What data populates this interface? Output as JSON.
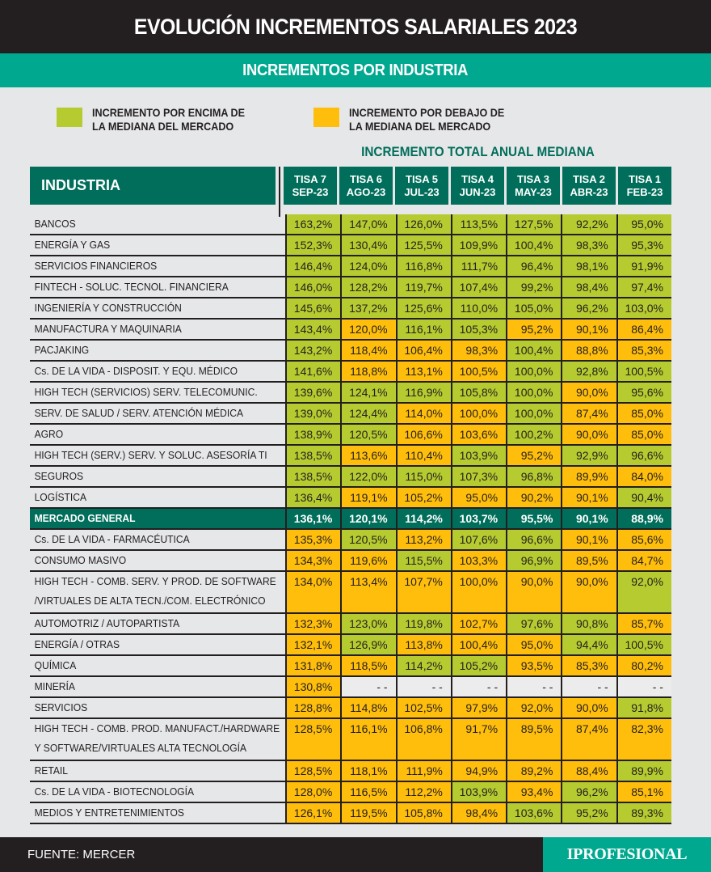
{
  "header": {
    "title": "EVOLUCIÓN INCREMENTOS SALARIALES 2023",
    "subtitle": "INCREMENTOS POR INDUSTRIA"
  },
  "legend": {
    "above": {
      "label_line1": "INCREMENTO POR ENCIMA DE",
      "label_line2": "LA MEDIANA DEL MERCADO",
      "color": "#b5cb30"
    },
    "below": {
      "label_line1": "INCREMENTO POR DEBAJO DE",
      "label_line2": "LA MEDIANA DEL MERCADO",
      "color": "#ffbe0c"
    }
  },
  "section_title": "INCREMENTO TOTAL ANUAL MEDIANA",
  "colors": {
    "header_dark": "#231f20",
    "teal": "#00a88f",
    "dark_green": "#006e5a",
    "above": "#b5cb30",
    "below": "#ffbe0c",
    "background": "#e6e7e9"
  },
  "table": {
    "industry_header": "INDUSTRIA",
    "columns": [
      {
        "line1": "TISA 7",
        "line2": "SEP-23"
      },
      {
        "line1": "TISA 6",
        "line2": "AGO-23"
      },
      {
        "line1": "TISA 5",
        "line2": "JUL-23"
      },
      {
        "line1": "TISA 4",
        "line2": "JUN-23"
      },
      {
        "line1": "TISA 3",
        "line2": "MAY-23"
      },
      {
        "line1": "TISA 2",
        "line2": "ABR-23"
      },
      {
        "line1": "TISA 1",
        "line2": "FEB-23"
      }
    ],
    "rows": [
      {
        "label": [
          "BANCOS"
        ],
        "values": [
          "163,2%",
          "147,0%",
          "126,0%",
          "113,5%",
          "127,5%",
          "92,2%",
          "95,0%"
        ],
        "status": [
          "a",
          "a",
          "a",
          "a",
          "a",
          "a",
          "a"
        ]
      },
      {
        "label": [
          "ENERGÍA Y GAS"
        ],
        "values": [
          "152,3%",
          "130,4%",
          "125,5%",
          "109,9%",
          "100,4%",
          "98,3%",
          "95,3%"
        ],
        "status": [
          "a",
          "a",
          "a",
          "a",
          "a",
          "a",
          "a"
        ]
      },
      {
        "label": [
          "SERVICIOS FINANCIEROS"
        ],
        "values": [
          "146,4%",
          "124,0%",
          "116,8%",
          "111,7%",
          "96,4%",
          "98,1%",
          "91,9%"
        ],
        "status": [
          "a",
          "a",
          "a",
          "a",
          "a",
          "a",
          "a"
        ]
      },
      {
        "label": [
          "FINTECH - SOLUC. TECNOL. FINANCIERA"
        ],
        "values": [
          "146,0%",
          "128,2%",
          "119,7%",
          "107,4%",
          "99,2%",
          "98,4%",
          "97,4%"
        ],
        "status": [
          "a",
          "a",
          "a",
          "a",
          "a",
          "a",
          "a"
        ]
      },
      {
        "label": [
          "INGENIERÍA Y CONSTRUCCIÓN"
        ],
        "values": [
          "145,6%",
          "137,2%",
          "125,6%",
          "110,0%",
          "105,0%",
          "96,2%",
          "103,0%"
        ],
        "status": [
          "a",
          "a",
          "a",
          "a",
          "a",
          "a",
          "a"
        ]
      },
      {
        "label": [
          "MANUFACTURA Y MAQUINARIA"
        ],
        "values": [
          "143,4%",
          "120,0%",
          "116,1%",
          "105,3%",
          "95,2%",
          "90,1%",
          "86,4%"
        ],
        "status": [
          "a",
          "b",
          "a",
          "a",
          "b",
          "b",
          "b"
        ]
      },
      {
        "label": [
          "PACJAKING"
        ],
        "values": [
          "143,2%",
          "118,4%",
          "106,4%",
          "98,3%",
          "100,4%",
          "88,8%",
          "85,3%"
        ],
        "status": [
          "a",
          "b",
          "b",
          "b",
          "a",
          "b",
          "b"
        ]
      },
      {
        "label": [
          "Cs. DE LA VIDA - DISPOSIT. Y EQU. MÉDICO"
        ],
        "values": [
          "141,6%",
          "118,8%",
          "113,1%",
          "100,5%",
          "100,0%",
          "92,8%",
          "100,5%"
        ],
        "status": [
          "a",
          "b",
          "b",
          "b",
          "a",
          "a",
          "a"
        ]
      },
      {
        "label": [
          "HIGH TECH (SERVICIOS) SERV. TELECOMUNIC."
        ],
        "values": [
          "139,6%",
          "124,1%",
          "116,9%",
          "105,8%",
          "100,0%",
          "90,0%",
          "95,6%"
        ],
        "status": [
          "a",
          "a",
          "a",
          "a",
          "a",
          "b",
          "a"
        ]
      },
      {
        "label": [
          "SERV. DE SALUD / SERV. ATENCIÓN MÉDICA"
        ],
        "values": [
          "139,0%",
          "124,4%",
          "114,0%",
          "100,0%",
          "100,0%",
          "87,4%",
          "85,0%"
        ],
        "status": [
          "a",
          "a",
          "b",
          "b",
          "a",
          "b",
          "b"
        ]
      },
      {
        "label": [
          "AGRO"
        ],
        "values": [
          "138,9%",
          "120,5%",
          "106,6%",
          "103,6%",
          "100,2%",
          "90,0%",
          "85,0%"
        ],
        "status": [
          "a",
          "a",
          "b",
          "b",
          "a",
          "b",
          "b"
        ]
      },
      {
        "label": [
          "HIGH TECH (SERV.) SERV. Y SOLUC. ASESORÍA TI"
        ],
        "values": [
          "138,5%",
          "113,6%",
          "110,4%",
          "103,9%",
          "95,2%",
          "92,9%",
          "96,6%"
        ],
        "status": [
          "a",
          "b",
          "b",
          "a",
          "b",
          "a",
          "a"
        ]
      },
      {
        "label": [
          "SEGUROS"
        ],
        "values": [
          "138,5%",
          "122,0%",
          "115,0%",
          "107,3%",
          "96,8%",
          "89,9%",
          "84,0%"
        ],
        "status": [
          "a",
          "a",
          "a",
          "a",
          "a",
          "b",
          "b"
        ]
      },
      {
        "label": [
          "LOGÍSTICA"
        ],
        "values": [
          "136,4%",
          "119,1%",
          "105,2%",
          "95,0%",
          "90,2%",
          "90,1%",
          "90,4%"
        ],
        "status": [
          "a",
          "b",
          "b",
          "b",
          "b",
          "b",
          "a"
        ]
      },
      {
        "label": [
          "MERCADO GENERAL"
        ],
        "values": [
          "136,1%",
          "120,1%",
          "114,2%",
          "103,7%",
          "95,5%",
          "90,1%",
          "88,9%"
        ],
        "status": [
          "g",
          "g",
          "g",
          "g",
          "g",
          "g",
          "g"
        ],
        "general": true
      },
      {
        "label": [
          "Cs. DE LA VIDA - FARMACÉUTICA"
        ],
        "values": [
          "135,3%",
          "120,5%",
          "113,2%",
          "107,6%",
          "96,6%",
          "90,1%",
          "85,6%"
        ],
        "status": [
          "b",
          "a",
          "b",
          "a",
          "a",
          "b",
          "b"
        ]
      },
      {
        "label": [
          "CONSUMO MASIVO"
        ],
        "values": [
          "134,3%",
          "119,6%",
          "115,5%",
          "103,3%",
          "96,9%",
          "89,5%",
          "84,7%"
        ],
        "status": [
          "b",
          "b",
          "a",
          "b",
          "a",
          "b",
          "b"
        ]
      },
      {
        "label": [
          "HIGH TECH - COMB. SERV. Y PROD. DE SOFTWARE",
          "/VIRTUALES DE ALTA TECN./COM. ELECTRÓNICO"
        ],
        "values": [
          "134,0%",
          "113,4%",
          "107,7%",
          "100,0%",
          "90,0%",
          "90,0%",
          "92,0%"
        ],
        "status": [
          "b",
          "b",
          "b",
          "b",
          "b",
          "b",
          "a"
        ]
      },
      {
        "label": [
          "AUTOMOTRIZ / AUTOPARTISTA"
        ],
        "values": [
          "132,3%",
          "123,0%",
          "119,8%",
          "102,7%",
          "97,6%",
          "90,8%",
          "85,7%"
        ],
        "status": [
          "b",
          "a",
          "a",
          "b",
          "a",
          "a",
          "b"
        ]
      },
      {
        "label": [
          "ENERGÍA / OTRAS"
        ],
        "values": [
          "132,1%",
          "126,9%",
          "113,8%",
          "100,4%",
          "95,0%",
          "94,4%",
          "100,5%"
        ],
        "status": [
          "b",
          "a",
          "b",
          "b",
          "b",
          "a",
          "a"
        ]
      },
      {
        "label": [
          "QUÍMICA"
        ],
        "values": [
          "131,8%",
          "118,5%",
          "114,2%",
          "105,2%",
          "93,5%",
          "85,3%",
          "80,2%"
        ],
        "status": [
          "b",
          "b",
          "a",
          "a",
          "b",
          "b",
          "b"
        ]
      },
      {
        "label": [
          "MINERÍA"
        ],
        "values": [
          "130,8%",
          "- -",
          "- -",
          "- -",
          "- -",
          "- -",
          "- -"
        ],
        "status": [
          "b",
          "e",
          "e",
          "e",
          "e",
          "e",
          "e"
        ]
      },
      {
        "label": [
          "SERVICIOS"
        ],
        "values": [
          "128,8%",
          "114,8%",
          "102,5%",
          "97,9%",
          "92,0%",
          "90,0%",
          "91,8%"
        ],
        "status": [
          "b",
          "b",
          "b",
          "b",
          "b",
          "b",
          "a"
        ]
      },
      {
        "label": [
          "HIGH TECH - COMB. PROD. MANUFACT./HARDWARE",
          "Y SOFTWARE/VIRTUALES ALTA TECNOLOGÍA"
        ],
        "values": [
          "128,5%",
          "116,1%",
          "106,8%",
          "91,7%",
          "89,5%",
          "87,4%",
          "82,3%"
        ],
        "status": [
          "b",
          "b",
          "b",
          "b",
          "b",
          "b",
          "b"
        ]
      },
      {
        "label": [
          "RETAIL"
        ],
        "values": [
          "128,5%",
          "118,1%",
          "111,9%",
          "94,9%",
          "89,2%",
          "88,4%",
          "89,9%"
        ],
        "status": [
          "b",
          "b",
          "b",
          "b",
          "b",
          "b",
          "a"
        ]
      },
      {
        "label": [
          "Cs. DE LA VIDA - BIOTECNOLOGÍA"
        ],
        "values": [
          "128,0%",
          "116,5%",
          "112,2%",
          "103,9%",
          "93,4%",
          "96,2%",
          "85,1%"
        ],
        "status": [
          "b",
          "b",
          "b",
          "a",
          "b",
          "a",
          "b"
        ]
      },
      {
        "label": [
          "MEDIOS Y ENTRETENIMIENTOS"
        ],
        "values": [
          "126,1%",
          "119,5%",
          "105,8%",
          "98,4%",
          "103,6%",
          "95,2%",
          "89,3%"
        ],
        "status": [
          "b",
          "b",
          "b",
          "b",
          "a",
          "a",
          "a"
        ]
      }
    ]
  },
  "footer": {
    "source": "FUENTE: MERCER",
    "brand": "IPROFESIONAL"
  }
}
